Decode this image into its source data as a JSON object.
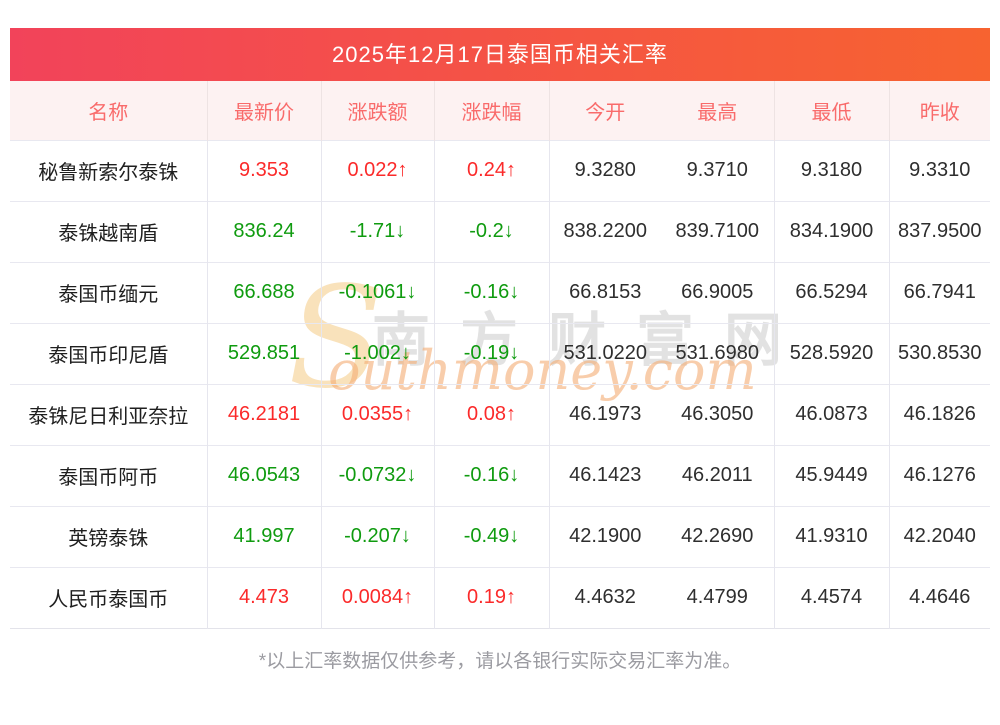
{
  "title": "2025年12月17日泰国币相关汇率",
  "footnote": "*以上汇率数据仅供参考，请以各银行实际交易汇率为准。",
  "watermark": {
    "initial": "S",
    "en_rest": "outhmoney.com",
    "cn": "南方财富网"
  },
  "arrows": {
    "up": "↑",
    "down": "↓"
  },
  "colors": {
    "up": "#fb2a2a",
    "down": "#0f9b0f",
    "banner_gradient_left": "#f2435a",
    "banner_gradient_right": "#f76330",
    "header_text": "#f96b6b",
    "header_bg": "#fdf2f2"
  },
  "chart_data": {
    "type": "table",
    "title": "2025年12月17日泰国币相关汇率",
    "columns": [
      "名称",
      "最新价",
      "涨跌额",
      "涨跌幅",
      "今开",
      "最高",
      "最低",
      "昨收"
    ],
    "column_keys": [
      "name",
      "latest",
      "change",
      "pct",
      "open",
      "high",
      "low",
      "prev_close"
    ],
    "rows": [
      {
        "name": "秘鲁新索尔泰铢",
        "latest": "9.353",
        "change": "0.022",
        "pct": "0.24",
        "dir": "up",
        "open": "9.3280",
        "high": "9.3710",
        "low": "9.3180",
        "prev_close": "9.3310"
      },
      {
        "name": "泰铢越南盾",
        "latest": "836.24",
        "change": "-1.71",
        "pct": "-0.2",
        "dir": "down",
        "open": "838.2200",
        "high": "839.7100",
        "low": "834.1900",
        "prev_close": "837.9500"
      },
      {
        "name": "泰国币缅元",
        "latest": "66.688",
        "change": "-0.1061",
        "pct": "-0.16",
        "dir": "down",
        "open": "66.8153",
        "high": "66.9005",
        "low": "66.5294",
        "prev_close": "66.7941"
      },
      {
        "name": "泰国币印尼盾",
        "latest": "529.851",
        "change": "-1.002",
        "pct": "-0.19",
        "dir": "down",
        "open": "531.0220",
        "high": "531.6980",
        "low": "528.5920",
        "prev_close": "530.8530"
      },
      {
        "name": "泰铢尼日利亚奈拉",
        "latest": "46.2181",
        "change": "0.0355",
        "pct": "0.08",
        "dir": "up",
        "open": "46.1973",
        "high": "46.3050",
        "low": "46.0873",
        "prev_close": "46.1826"
      },
      {
        "name": "泰国币阿币",
        "latest": "46.0543",
        "change": "-0.0732",
        "pct": "-0.16",
        "dir": "down",
        "open": "46.1423",
        "high": "46.2011",
        "low": "45.9449",
        "prev_close": "46.1276"
      },
      {
        "name": "英镑泰铢",
        "latest": "41.997",
        "change": "-0.207",
        "pct": "-0.49",
        "dir": "down",
        "open": "42.1900",
        "high": "42.2690",
        "low": "41.9310",
        "prev_close": "42.2040"
      },
      {
        "name": "人民币泰国币",
        "latest": "4.473",
        "change": "0.0084",
        "pct": "0.19",
        "dir": "up",
        "open": "4.4632",
        "high": "4.4799",
        "low": "4.4574",
        "prev_close": "4.4646"
      }
    ]
  }
}
